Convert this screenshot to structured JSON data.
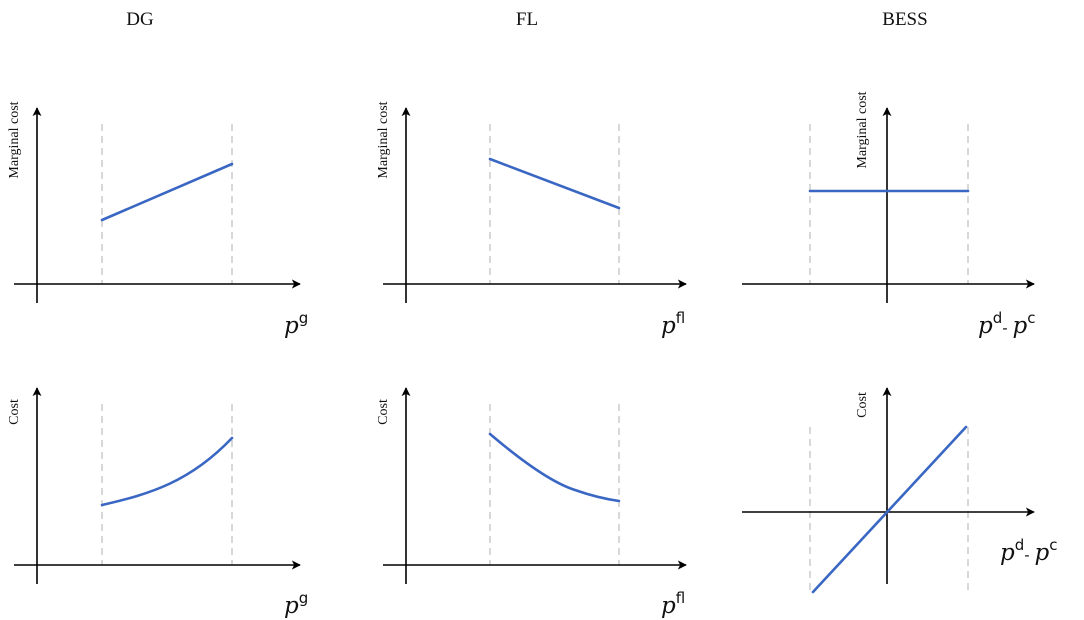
{
  "columns": [
    {
      "title": "DG"
    },
    {
      "title": "FL"
    },
    {
      "title": "BESS"
    }
  ],
  "panels": {
    "dg_marginal": {
      "ylabel": "Marginal cost",
      "xlabel_base": "p",
      "xlabel_sup": "g"
    },
    "fl_marginal": {
      "ylabel": "Marginal cost",
      "xlabel_base": "p",
      "xlabel_sup": "fl"
    },
    "bess_marginal": {
      "ylabel": "Marginal cost",
      "xlabel_a": "p",
      "xlabel_a_sup": "d",
      "xlabel_sep": "- ",
      "xlabel_b": "p",
      "xlabel_b_sup": "c"
    },
    "dg_cost": {
      "ylabel": "Cost",
      "xlabel_base": "p",
      "xlabel_sup": "g"
    },
    "fl_cost": {
      "ylabel": "Cost",
      "xlabel_base": "p",
      "xlabel_sup": "fl"
    },
    "bess_cost": {
      "ylabel": "Cost",
      "xlabel_a": "p",
      "xlabel_a_sup": "d",
      "xlabel_sep": "- ",
      "xlabel_b": "p",
      "xlabel_b_sup": "c"
    }
  },
  "colors": {
    "curve": "#3a67c3",
    "axis": "#000000",
    "guide": "#c8c8c8"
  }
}
